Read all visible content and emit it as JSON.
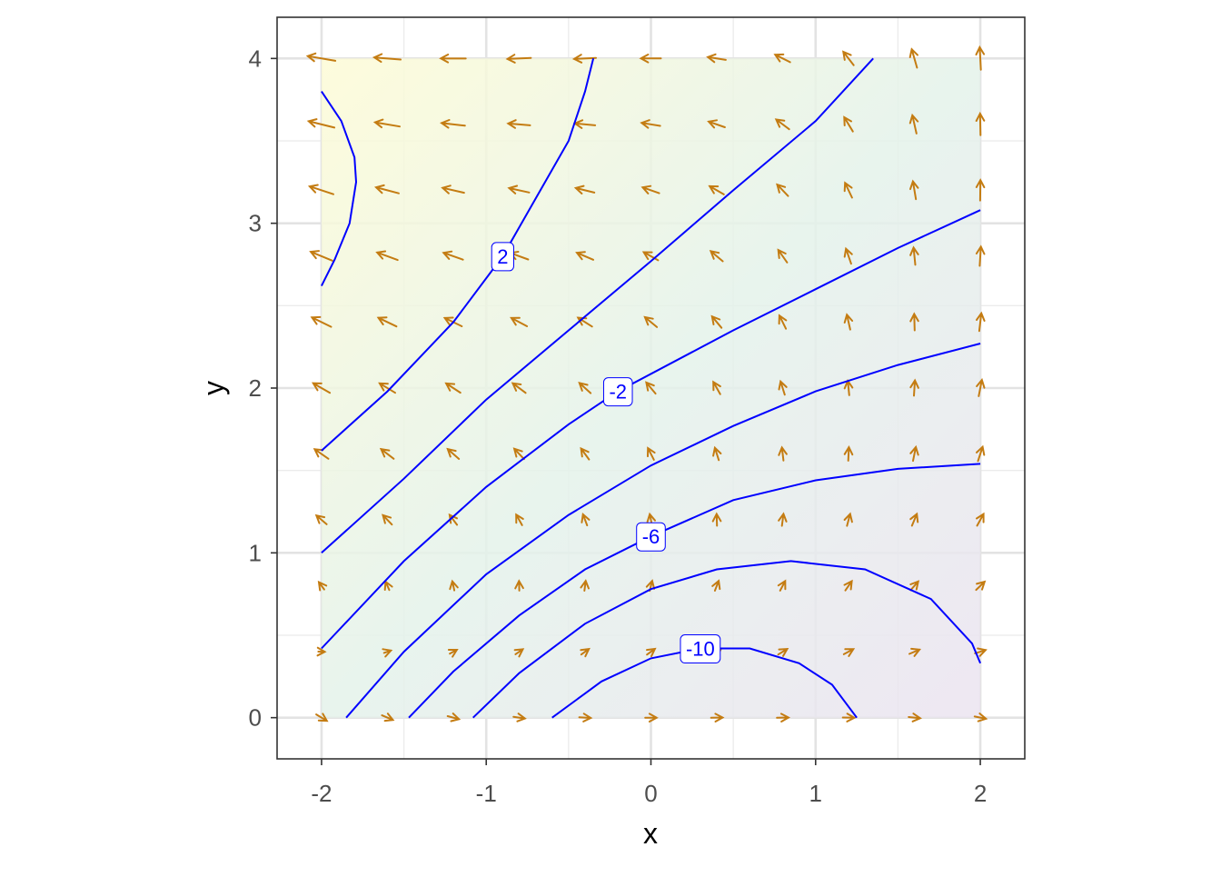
{
  "chart_data": {
    "type": "vector_field",
    "xlabel": "x",
    "ylabel": "y",
    "xlim": [
      -2.27,
      2.27
    ],
    "ylim": [
      -0.25,
      4.25
    ],
    "xticks": [
      -2,
      -1,
      0,
      1,
      2
    ],
    "yticks": [
      0,
      1,
      2,
      3,
      4
    ],
    "x_minor_ticks": [
      -1.5,
      -0.5,
      0.5,
      1.5
    ],
    "y_minor_ticks": [
      0.5,
      1.5,
      2.5,
      3.5
    ],
    "grid": true,
    "arrow_color": "#c47c12",
    "contour_color": "#0000ff",
    "field": {
      "x": [
        -2,
        -1.6,
        -1.2,
        -0.8,
        -0.4,
        0,
        0.4,
        0.8,
        1.2,
        1.6,
        2
      ],
      "y": [
        0,
        0.4,
        0.8,
        1.2,
        1.6,
        2.0,
        2.4,
        2.8,
        3.2,
        3.6,
        4.0
      ],
      "u": [
        [
          1,
          1,
          1,
          1,
          1,
          1,
          1,
          1,
          1,
          1,
          1
        ],
        [
          0.32,
          0.38,
          0.43,
          0.49,
          0.54,
          0.6,
          0.66,
          0.71,
          0.77,
          0.82,
          0.88
        ],
        [
          -0.36,
          -0.25,
          -0.14,
          -0.02,
          0.09,
          0.2,
          0.31,
          0.42,
          0.54,
          0.65,
          0.76
        ],
        [
          -1.04,
          -0.87,
          -0.7,
          -0.54,
          -0.37,
          -0.2,
          -0.03,
          0.14,
          0.3,
          0.47,
          0.64
        ],
        [
          -1.72,
          -1.5,
          -1.27,
          -1.05,
          -0.82,
          -0.6,
          -0.38,
          -0.15,
          0.07,
          0.3,
          0.52
        ],
        [
          -2.4,
          -2.12,
          -1.84,
          -1.56,
          -1.28,
          -1,
          -0.72,
          -0.44,
          -0.16,
          0.12,
          0.4
        ],
        [
          -3.08,
          -2.74,
          -2.41,
          -2.07,
          -1.74,
          -1.4,
          -1.06,
          -0.73,
          -0.39,
          -0.06,
          0.28
        ],
        [
          -3.76,
          -3.37,
          -2.98,
          -2.58,
          -2.19,
          -1.8,
          -1.41,
          -1.02,
          -0.62,
          -0.23,
          0.16
        ],
        [
          -4.44,
          -3.99,
          -3.54,
          -3.1,
          -2.65,
          -2.2,
          -1.75,
          -1.3,
          -0.86,
          -0.41,
          0.04
        ],
        [
          -5.12,
          -4.62,
          -4.11,
          -3.61,
          -3.1,
          -2.6,
          -2.1,
          -1.59,
          -1.09,
          -0.58,
          -0.08
        ],
        [
          -5.8,
          -5.24,
          -4.68,
          -4.12,
          -3.56,
          -3,
          -2.44,
          -1.88,
          -1.32,
          -0.76,
          -0.2
        ]
      ],
      "v": [
        [
          -0.6,
          -0.42,
          -0.26,
          -0.14,
          -0.06,
          0,
          0.02,
          0.02,
          -0.02,
          -0.1,
          -0.2
        ],
        [
          -0.01,
          0.13,
          0.24,
          0.33,
          0.39,
          0.43,
          0.45,
          0.44,
          0.41,
          0.35,
          0.27
        ],
        [
          0.49,
          0.57,
          0.64,
          0.69,
          0.74,
          0.77,
          0.79,
          0.79,
          0.78,
          0.76,
          0.73
        ],
        [
          0.89,
          0.91,
          0.93,
          0.96,
          0.98,
          1.01,
          1.04,
          1.07,
          1.1,
          1.13,
          1.17
        ],
        [
          1.19,
          1.15,
          1.12,
          1.11,
          1.12,
          1.15,
          1.2,
          1.27,
          1.36,
          1.47,
          1.59
        ],
        [
          1.4,
          1.28,
          1.2,
          1.16,
          1.16,
          1.2,
          1.28,
          1.4,
          1.56,
          1.76,
          2.0
        ],
        [
          1.51,
          1.31,
          1.18,
          1.1,
          1.1,
          1.15,
          1.27,
          1.46,
          1.7,
          2.02,
          2.39
        ],
        [
          1.53,
          1.24,
          1.05,
          0.94,
          0.93,
          1.01,
          1.18,
          1.44,
          1.79,
          2.23,
          2.77
        ],
        [
          1.45,
          1.07,
          0.81,
          0.68,
          0.66,
          0.77,
          1.0,
          1.35,
          1.82,
          2.41,
          3.13
        ],
        [
          1.27,
          0.79,
          0.47,
          0.3,
          0.29,
          0.43,
          0.73,
          1.18,
          1.79,
          2.55,
          3.47
        ],
        [
          1.0,
          0.42,
          0.02,
          -0.18,
          -0.18,
          0,
          0.38,
          0.94,
          1.7,
          2.66,
          3.8
        ]
      ]
    },
    "contours": [
      {
        "x": [
          -2,
          -1.88,
          -1.8,
          -1.79,
          -1.83,
          -1.92,
          -2
        ],
        "y": [
          3.8,
          3.62,
          3.4,
          3.25,
          3.0,
          2.78,
          2.62
        ]
      },
      {
        "label": 2,
        "x": [
          -2,
          -1.6,
          -1.2,
          -0.9,
          -0.7,
          -0.5,
          -0.4,
          -0.35
        ],
        "y": [
          1.62,
          1.98,
          2.4,
          2.8,
          3.15,
          3.5,
          3.8,
          4
        ]
      },
      {
        "x": [
          -2,
          -1.5,
          -1,
          -0.5,
          0,
          0.5,
          1,
          1.35
        ],
        "y": [
          1.0,
          1.45,
          1.93,
          2.35,
          2.77,
          3.2,
          3.62,
          4
        ]
      },
      {
        "label": -2,
        "x": [
          -2,
          -1.5,
          -1,
          -0.5,
          -0.2,
          0.5,
          1,
          1.5,
          2
        ],
        "y": [
          0.42,
          0.95,
          1.4,
          1.78,
          1.98,
          2.35,
          2.6,
          2.85,
          3.08
        ]
      },
      {
        "x": [
          -1.85,
          -1.5,
          -1,
          -0.5,
          0,
          0.5,
          1,
          1.5,
          2
        ],
        "y": [
          0,
          0.4,
          0.87,
          1.23,
          1.53,
          1.77,
          1.98,
          2.14,
          2.27
        ]
      },
      {
        "label": -6,
        "x": [
          -1.47,
          -1.2,
          -0.8,
          -0.4,
          0,
          0.5,
          1,
          1.5,
          2
        ],
        "y": [
          0,
          0.28,
          0.62,
          0.9,
          1.1,
          1.32,
          1.44,
          1.51,
          1.54
        ]
      },
      {
        "x": [
          -1.08,
          -0.8,
          -0.4,
          0,
          0.4,
          0.85,
          1.3,
          1.7,
          1.95,
          2
        ],
        "y": [
          0,
          0.27,
          0.57,
          0.78,
          0.9,
          0.95,
          0.9,
          0.72,
          0.45,
          0.33
        ]
      },
      {
        "label": -10,
        "x": [
          -0.6,
          -0.3,
          0,
          0.3,
          0.6,
          0.9,
          1.1,
          1.25
        ],
        "y": [
          0,
          0.22,
          0.36,
          0.42,
          0.42,
          0.33,
          0.2,
          0
        ]
      }
    ]
  }
}
